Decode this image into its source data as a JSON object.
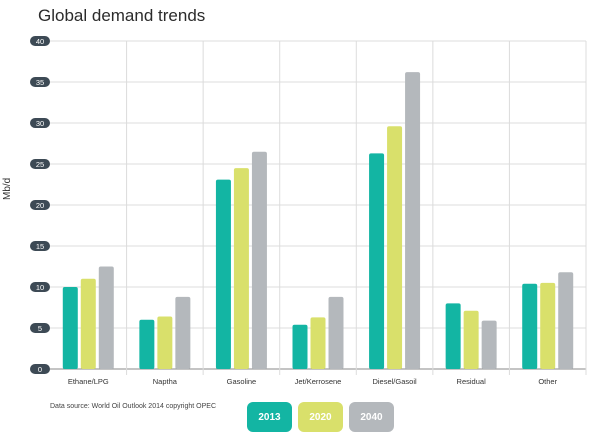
{
  "chart_data": {
    "type": "bar",
    "title": "Global demand trends",
    "ylabel": "Mb/d",
    "xlabel": "",
    "ylim": [
      0,
      40
    ],
    "yticks": [
      0,
      5,
      10,
      15,
      20,
      25,
      30,
      35,
      40
    ],
    "grid": true,
    "legend": "bottom",
    "categories": [
      "Ethane/LPG",
      "Naptha",
      "Gasoline",
      "Jet/Kerrosene",
      "Diesel/Gasoil",
      "Residual",
      "Other"
    ],
    "series": [
      {
        "name": "2013",
        "color": "#13b5a3",
        "values": [
          10.0,
          6.0,
          23.1,
          5.4,
          26.3,
          8.0,
          10.4
        ]
      },
      {
        "name": "2020",
        "color": "#d9e06b",
        "values": [
          11.0,
          6.4,
          24.5,
          6.3,
          29.6,
          7.1,
          10.5
        ]
      },
      {
        "name": "2040",
        "color": "#b4b8bc",
        "values": [
          12.5,
          8.8,
          26.5,
          8.8,
          36.2,
          5.9,
          11.8
        ]
      }
    ],
    "source": "Data source: World Oil Outlook 2014 copyright OPEC"
  }
}
